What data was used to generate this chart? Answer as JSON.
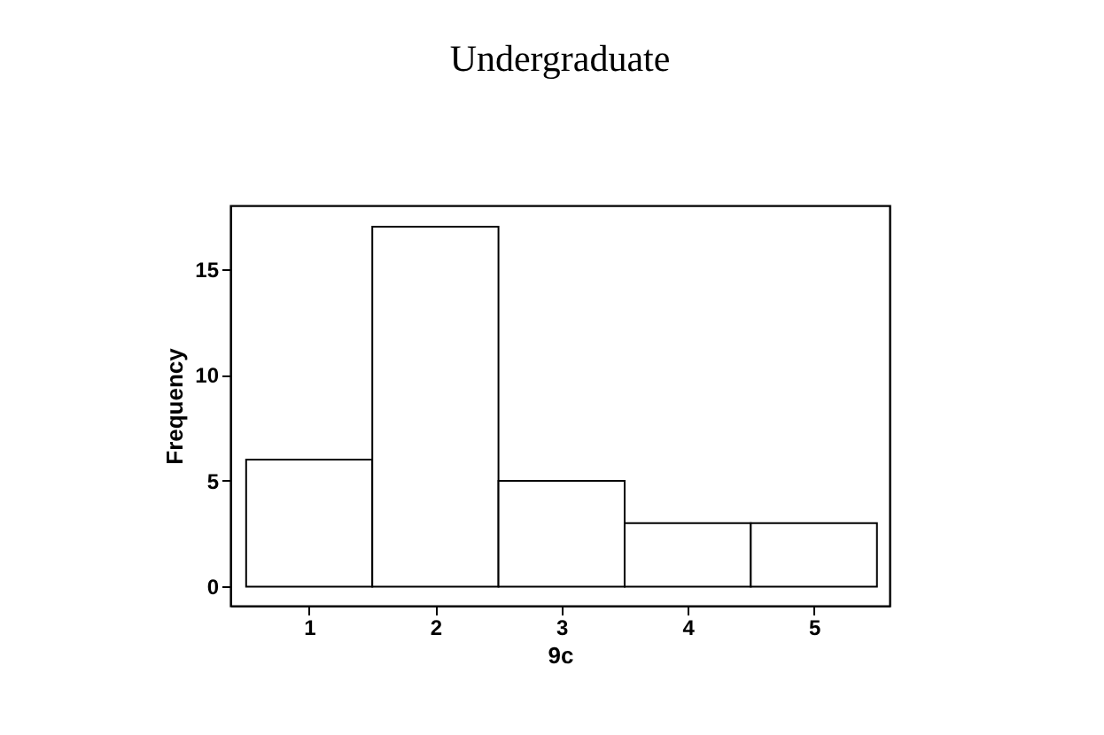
{
  "chart_data": {
    "type": "histogram",
    "title": "Undergraduate",
    "xlabel": "9c",
    "ylabel": "Frequency",
    "bins": [
      0.5,
      1.5,
      2.5,
      3.5,
      4.5,
      5.5
    ],
    "values": [
      6,
      17,
      5,
      3,
      3
    ],
    "color": "#ffffff",
    "xlim": [
      0.375,
      5.6
    ],
    "xticks": [
      1,
      2,
      3,
      4,
      5
    ],
    "ylim": [
      -0.9,
      18
    ],
    "yticks": [
      0,
      5,
      10,
      15
    ],
    "grid": false
  }
}
